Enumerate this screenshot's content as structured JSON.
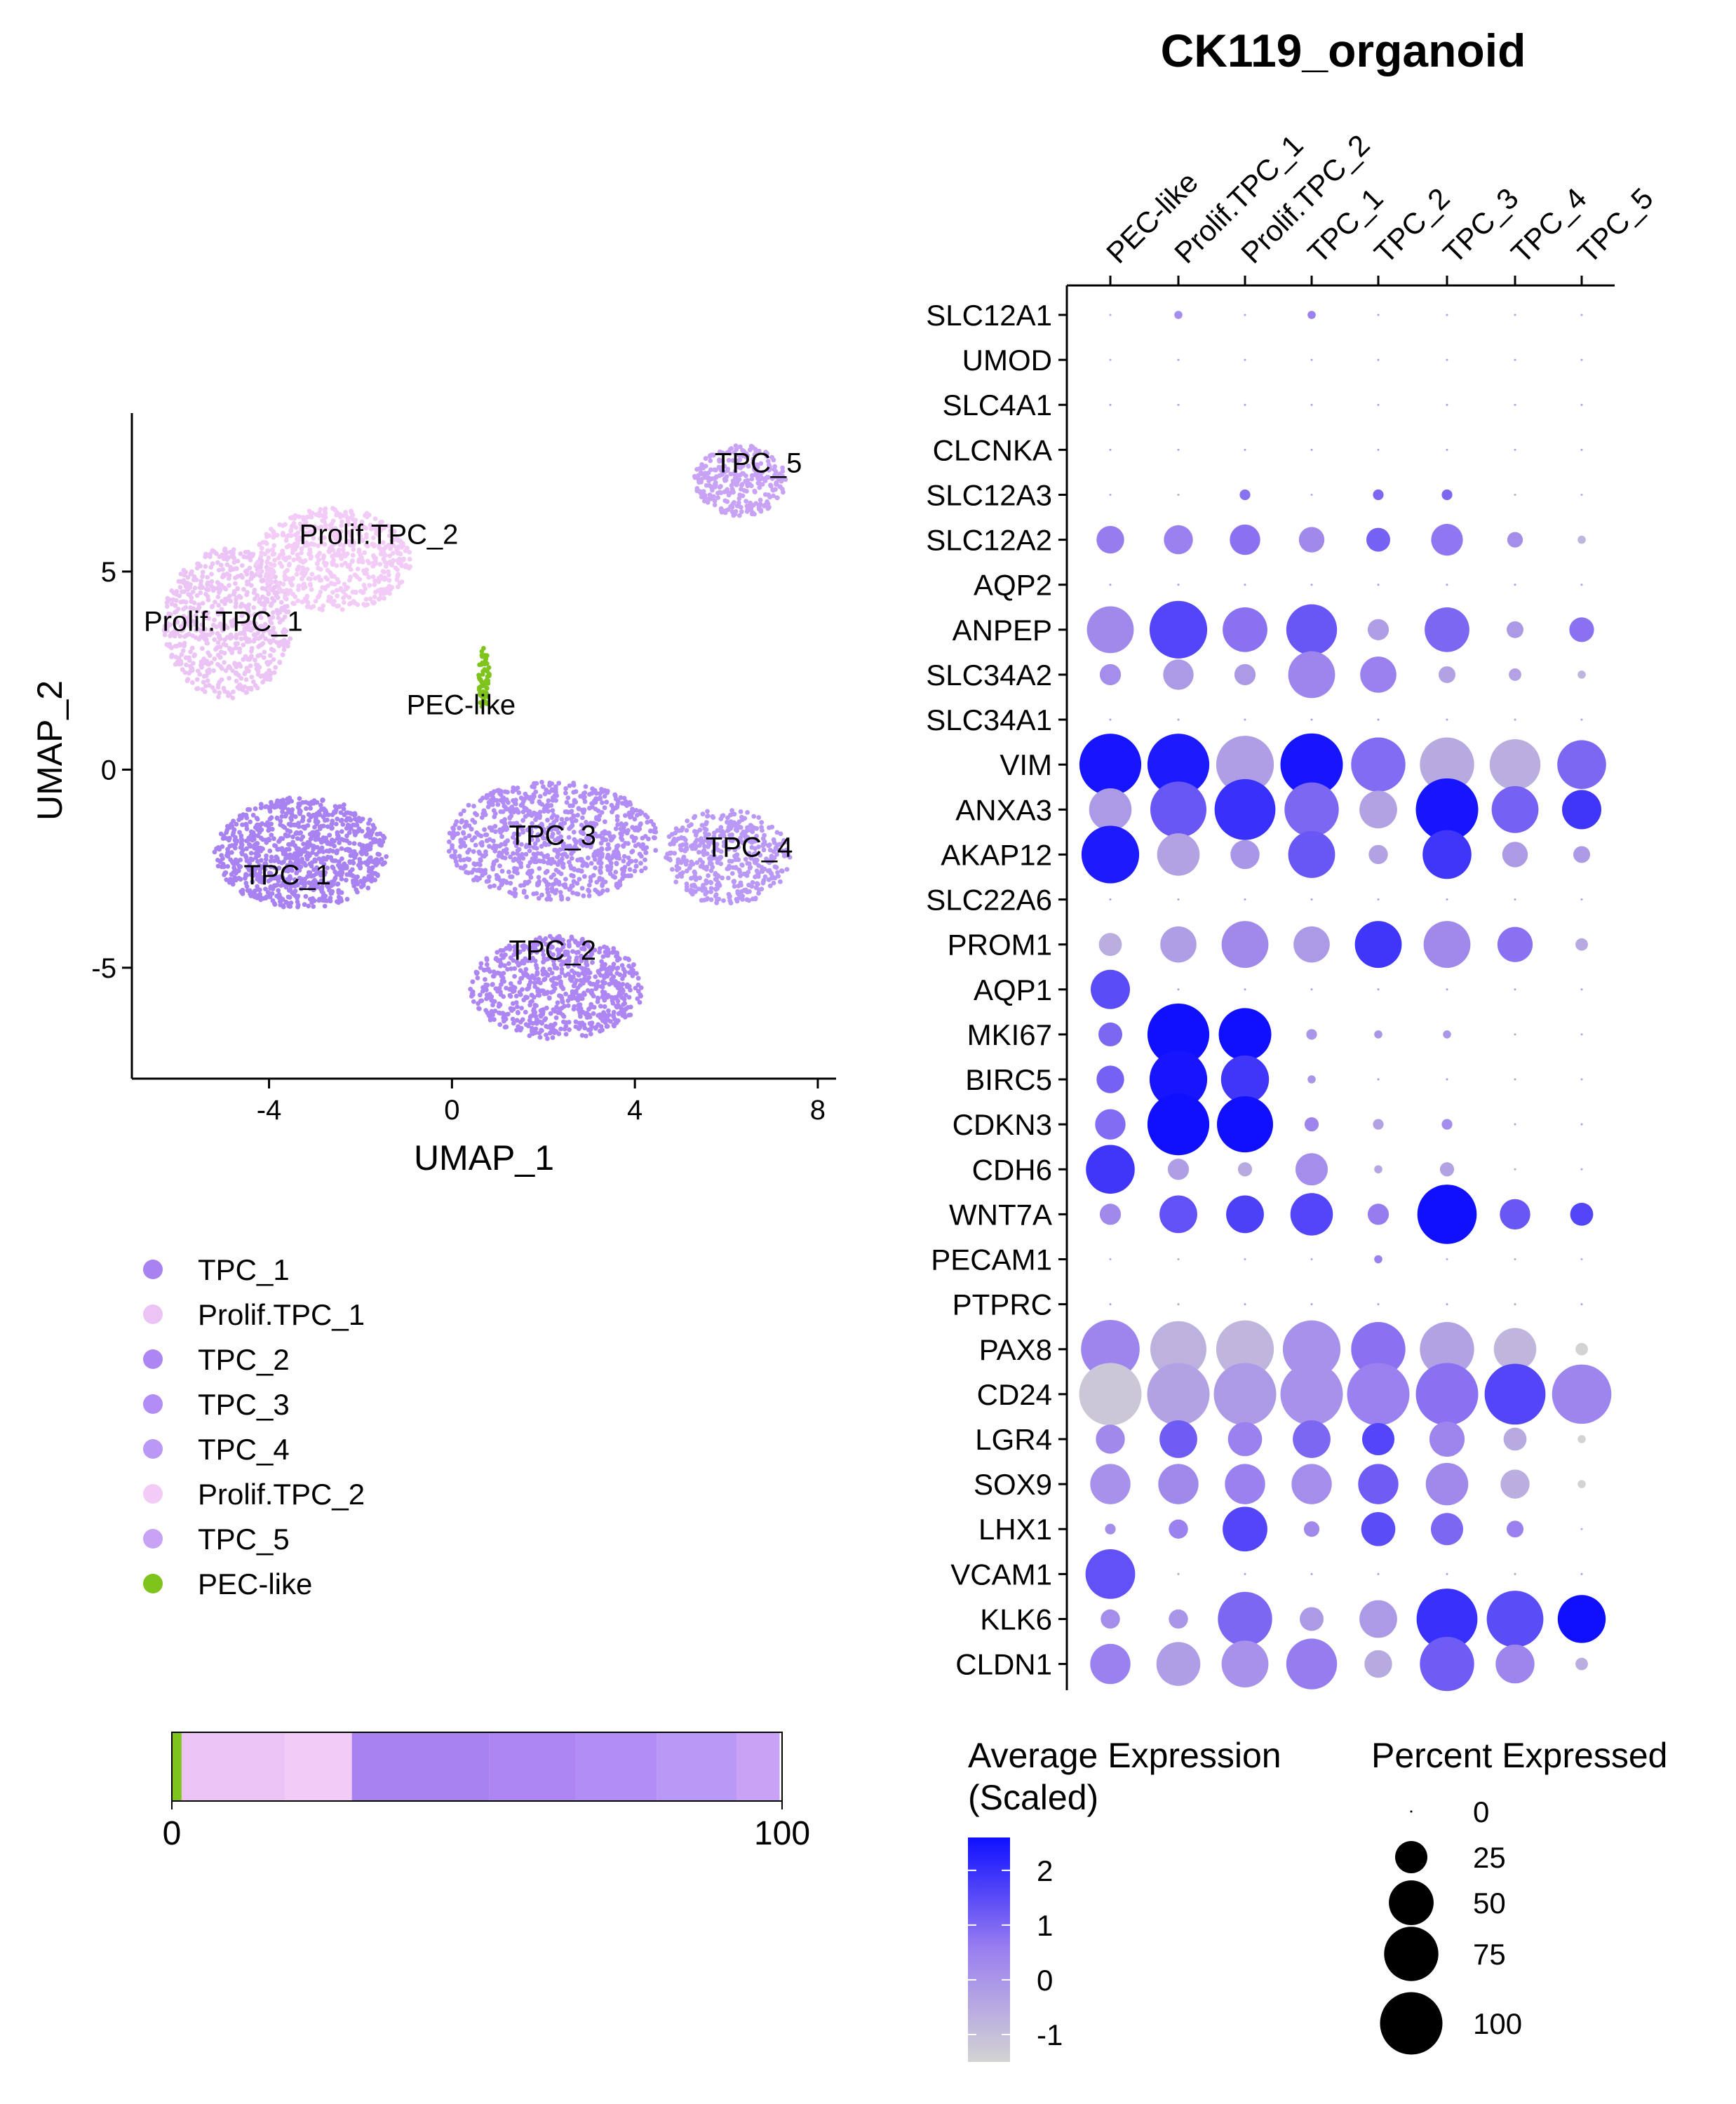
{
  "chart_data": [
    {
      "type": "scatter",
      "panel": "umap",
      "xlabel": "UMAP_1",
      "ylabel": "UMAP_2",
      "xlim": [
        -7,
        8.4
      ],
      "ylim": [
        -7.8,
        9
      ],
      "xticks": [
        -4,
        0,
        4,
        8
      ],
      "yticks": [
        -5,
        0,
        5
      ],
      "clusters": [
        {
          "name": "TPC_1",
          "color": "#A982F2",
          "cx": -3.3,
          "cy": -2.1,
          "rx": 1.9,
          "ry": 1.4,
          "n": 950
        },
        {
          "name": "Prolif.TPC_1",
          "color": "#EBC4F5",
          "cx": -4.9,
          "cy": 3.7,
          "rx": 1.4,
          "ry": 1.9,
          "n": 700
        },
        {
          "name": "TPC_2",
          "color": "#AE86F4",
          "cx": 2.3,
          "cy": -5.5,
          "rx": 1.9,
          "ry": 1.3,
          "n": 750
        },
        {
          "name": "TPC_3",
          "color": "#B18DF5",
          "cx": 2.2,
          "cy": -1.8,
          "rx": 2.3,
          "ry": 1.5,
          "n": 900
        },
        {
          "name": "TPC_4",
          "color": "#BA98F6",
          "cx": 6.0,
          "cy": -2.2,
          "rx": 1.4,
          "ry": 1.2,
          "n": 450
        },
        {
          "name": "Prolif.TPC_2",
          "color": "#F2CCF7",
          "cx": -2.6,
          "cy": 5.3,
          "rx": 1.7,
          "ry": 1.3,
          "n": 600
        },
        {
          "name": "TPC_5",
          "color": "#C8A2F5",
          "cx": 6.3,
          "cy": 7.3,
          "rx": 1.0,
          "ry": 0.9,
          "n": 300
        },
        {
          "name": "PEC-like",
          "color": "#7FC41C",
          "cx": 0.7,
          "cy": 2.3,
          "rx": 0.12,
          "ry": 0.8,
          "n": 60
        }
      ],
      "cluster_labels": [
        {
          "text": "Prolif.TPC_2",
          "x": -1.6,
          "y": 5.7
        },
        {
          "text": "Prolif.TPC_1",
          "x": -5.0,
          "y": 3.5
        },
        {
          "text": "PEC-like",
          "x": 0.2,
          "y": 1.4
        },
        {
          "text": "TPC_5",
          "x": 6.7,
          "y": 7.5
        },
        {
          "text": "TPC_3",
          "x": 2.2,
          "y": -1.9
        },
        {
          "text": "TPC_4",
          "x": 6.5,
          "y": -2.2
        },
        {
          "text": "TPC_1",
          "x": -3.6,
          "y": -2.9
        },
        {
          "text": "TPC_2",
          "x": 2.2,
          "y": -4.8
        }
      ],
      "legend": [
        {
          "label": "TPC_1",
          "color": "#A982F2"
        },
        {
          "label": "Prolif.TPC_1",
          "color": "#EBC4F5"
        },
        {
          "label": "TPC_2",
          "color": "#AE86F4"
        },
        {
          "label": "TPC_3",
          "color": "#B18DF5"
        },
        {
          "label": "TPC_4",
          "color": "#BA98F6"
        },
        {
          "label": "Prolif.TPC_2",
          "color": "#F2CCF7"
        },
        {
          "label": "TPC_5",
          "color": "#C8A2F5"
        },
        {
          "label": "PEC-like",
          "color": "#7FC41C"
        }
      ]
    },
    {
      "type": "bar",
      "panel": "composition",
      "orientation": "horizontal-stacked",
      "xlim": [
        0,
        100
      ],
      "xticks": [
        0,
        100
      ],
      "segments": [
        {
          "name": "PEC-like",
          "value": 1.6,
          "color": "#7FC41C"
        },
        {
          "name": "Prolif.TPC_1",
          "value": 16.9,
          "color": "#EBC4F5"
        },
        {
          "name": "Prolif.TPC_2",
          "value": 11.0,
          "color": "#F2CCF7"
        },
        {
          "name": "TPC_1",
          "value": 22.5,
          "color": "#A982F2"
        },
        {
          "name": "TPC_2",
          "value": 14.2,
          "color": "#AE86F4"
        },
        {
          "name": "TPC_3",
          "value": 13.3,
          "color": "#B18DF5"
        },
        {
          "name": "TPC_4",
          "value": 13.1,
          "color": "#BA98F6"
        },
        {
          "name": "TPC_5",
          "value": 7.0,
          "color": "#C8A2F5"
        }
      ]
    },
    {
      "type": "dotplot",
      "panel": "dotplot",
      "title": "CK119_organoid",
      "groups": [
        "PEC-like",
        "Prolif.TPC_1",
        "Prolif.TPC_2",
        "TPC_1",
        "TPC_2",
        "TPC_3",
        "TPC_4",
        "TPC_5"
      ],
      "genes": [
        "SLC12A1",
        "UMOD",
        "SLC4A1",
        "CLCNKA",
        "SLC12A3",
        "SLC12A2",
        "AQP2",
        "ANPEP",
        "SLC34A2",
        "SLC34A1",
        "VIM",
        "ANXA3",
        "AKAP12",
        "SLC22A6",
        "PROM1",
        "AQP1",
        "MKI67",
        "BIRC5",
        "CDKN3",
        "CDH6",
        "WNT7A",
        "PECAM1",
        "PTPRC",
        "PAX8",
        "CD24",
        "LGR4",
        "SOX9",
        "LHX1",
        "VCAM1",
        "KLK6",
        "CLDN1"
      ],
      "percent_expressed": [
        [
          0,
          1,
          0,
          1,
          0,
          0,
          0,
          0
        ],
        [
          0,
          0,
          0,
          0,
          0,
          0,
          0,
          0
        ],
        [
          0,
          0,
          0,
          0,
          0,
          0,
          0,
          0
        ],
        [
          0,
          0,
          0,
          0,
          0,
          0,
          0,
          0
        ],
        [
          0,
          0,
          2,
          0,
          2,
          2,
          0,
          0
        ],
        [
          18,
          20,
          22,
          15,
          13,
          24,
          5,
          1
        ],
        [
          0,
          0,
          0,
          0,
          0,
          0,
          0,
          0
        ],
        [
          55,
          85,
          50,
          65,
          10,
          50,
          6,
          14
        ],
        [
          10,
          22,
          10,
          55,
          32,
          6,
          3,
          1
        ],
        [
          0,
          0,
          0,
          0,
          0,
          0,
          0,
          0
        ],
        [
          98,
          98,
          85,
          100,
          75,
          75,
          65,
          60
        ],
        [
          45,
          80,
          95,
          75,
          35,
          100,
          55,
          38
        ],
        [
          85,
          45,
          20,
          55,
          8,
          60,
          15,
          6
        ],
        [
          0,
          0,
          0,
          0,
          0,
          0,
          0,
          0
        ],
        [
          12,
          32,
          55,
          32,
          55,
          55,
          30,
          3
        ],
        [
          38,
          0,
          0,
          0,
          0,
          0,
          0,
          0
        ],
        [
          13,
          98,
          70,
          2,
          1,
          1,
          0,
          0
        ],
        [
          18,
          85,
          58,
          1,
          0,
          0,
          0,
          0
        ],
        [
          22,
          98,
          80,
          4,
          2,
          2,
          0,
          0
        ],
        [
          60,
          10,
          4,
          25,
          1,
          4,
          0,
          0
        ],
        [
          10,
          35,
          35,
          45,
          10,
          90,
          22,
          12
        ],
        [
          0,
          0,
          0,
          0,
          1,
          0,
          0,
          0
        ],
        [
          0,
          0,
          0,
          0,
          0,
          0,
          0,
          0
        ],
        [
          88,
          80,
          85,
          85,
          75,
          75,
          45,
          3
        ],
        [
          100,
          100,
          100,
          100,
          100,
          100,
          95,
          90
        ],
        [
          20,
          35,
          28,
          35,
          25,
          30,
          12,
          1
        ],
        [
          40,
          40,
          40,
          40,
          40,
          45,
          20,
          1
        ],
        [
          2,
          8,
          50,
          5,
          28,
          25,
          6,
          0
        ],
        [
          62,
          0,
          0,
          0,
          0,
          0,
          0,
          0
        ],
        [
          8,
          8,
          75,
          13,
          35,
          95,
          82,
          58
        ],
        [
          40,
          48,
          55,
          65,
          18,
          75,
          37,
          3
        ]
      ],
      "avg_expression_scaled": [
        [
          -0.5,
          0.2,
          -0.2,
          0.5,
          -0.2,
          -0.2,
          -0.3,
          -0.3
        ],
        [
          -0.5,
          -0.2,
          -0.2,
          -0.2,
          -0.2,
          -0.2,
          -0.2,
          -0.2
        ],
        [
          -0.2,
          -0.2,
          -0.2,
          -0.2,
          -0.2,
          -0.2,
          -0.2,
          -0.2
        ],
        [
          -0.2,
          -0.2,
          -0.2,
          -0.2,
          -0.2,
          -0.2,
          -0.2,
          -0.2
        ],
        [
          -0.5,
          -0.5,
          0.8,
          -0.5,
          1.0,
          1.0,
          -0.5,
          -0.5
        ],
        [
          0.6,
          0.5,
          0.8,
          0.3,
          1.1,
          0.7,
          0.2,
          -0.8
        ],
        [
          -0.2,
          -0.2,
          -0.2,
          -0.2,
          -0.2,
          -0.2,
          -0.2,
          -0.2
        ],
        [
          0.3,
          1.6,
          0.8,
          1.3,
          -0.2,
          1.0,
          -0.1,
          0.8
        ],
        [
          0.2,
          -0.1,
          -0.1,
          0.4,
          0.5,
          -0.3,
          -0.3,
          -0.8
        ],
        [
          -0.2,
          -0.2,
          -0.2,
          -0.2,
          -0.2,
          -0.2,
          -0.2,
          -0.2
        ],
        [
          2.5,
          2.4,
          -0.2,
          2.5,
          0.9,
          -0.5,
          -0.6,
          1.0
        ],
        [
          -0.1,
          1.3,
          2.0,
          1.0,
          -0.3,
          2.5,
          1.1,
          1.9
        ],
        [
          2.4,
          -0.3,
          0.0,
          1.3,
          -0.3,
          1.9,
          -0.1,
          -0.1
        ],
        [
          -0.2,
          -0.2,
          -0.2,
          -0.2,
          -0.2,
          -0.2,
          -0.2,
          -0.2
        ],
        [
          -0.6,
          -0.2,
          0.3,
          -0.1,
          1.9,
          0.3,
          0.8,
          -0.5
        ],
        [
          1.5,
          -0.2,
          -0.2,
          -0.2,
          -0.2,
          -0.2,
          -0.2,
          -0.2
        ],
        [
          1.0,
          2.6,
          2.6,
          0.0,
          0.0,
          0.0,
          -0.3,
          -0.3
        ],
        [
          1.1,
          2.5,
          1.9,
          0.0,
          0.0,
          0.0,
          -0.3,
          -0.3
        ],
        [
          0.9,
          2.6,
          2.6,
          0.4,
          -0.3,
          0.2,
          -0.2,
          -0.2
        ],
        [
          1.9,
          -0.2,
          -0.5,
          0.2,
          -0.4,
          -0.3,
          -0.3,
          -0.3
        ],
        [
          0.3,
          1.4,
          1.7,
          1.6,
          0.6,
          2.6,
          1.3,
          1.6
        ],
        [
          -0.5,
          -0.5,
          -0.4,
          -0.4,
          0.5,
          -0.5,
          -0.5,
          -0.5
        ],
        [
          -0.2,
          -0.2,
          -0.2,
          -0.2,
          -0.2,
          -0.2,
          -0.2,
          -0.2
        ],
        [
          0.4,
          -0.7,
          -0.8,
          0.1,
          0.8,
          -0.3,
          -0.8,
          -1.8
        ],
        [
          -1.2,
          -0.3,
          -0.1,
          0.1,
          0.5,
          0.8,
          1.6,
          0.4
        ],
        [
          0.3,
          1.2,
          0.5,
          1.0,
          1.6,
          0.4,
          -0.5,
          -1.5
        ],
        [
          0.1,
          0.3,
          0.5,
          0.2,
          1.2,
          0.3,
          -0.6,
          -1.5
        ],
        [
          0.2,
          0.5,
          1.6,
          0.3,
          1.5,
          1.0,
          0.5,
          -0.5
        ],
        [
          1.4,
          -0.2,
          -0.2,
          -0.2,
          -0.2,
          -0.2,
          -0.2,
          -0.2
        ],
        [
          0.2,
          0.0,
          1.0,
          -0.1,
          -0.1,
          2.0,
          1.5,
          2.7
        ],
        [
          0.5,
          -0.2,
          0.1,
          0.6,
          -0.5,
          1.2,
          0.4,
          -0.6
        ]
      ],
      "color_scale": {
        "title": "Average Expression\n(Scaled)",
        "low": "#D3D3D3",
        "high": "#0000FF",
        "range": [
          -1.5,
          2.6
        ],
        "ticks": [
          2,
          1,
          0,
          -1
        ]
      },
      "size_scale": {
        "title": "Percent Expressed",
        "ticks": [
          0,
          25,
          50,
          75,
          100
        ]
      }
    }
  ],
  "labels": {
    "title": "CK119_organoid",
    "umap_xlabel": "UMAP_1",
    "umap_ylabel": "UMAP_2",
    "umap_xticks": [
      "-4",
      "0",
      "4",
      "8"
    ],
    "umap_yticks": [
      "5",
      "0",
      "-5"
    ],
    "bar_ticks": [
      "0",
      "100"
    ],
    "color_legend_title_1": "Average Expression",
    "color_legend_title_2": "(Scaled)",
    "color_legend_ticks": [
      "2",
      "1",
      "0",
      "-1"
    ],
    "size_legend_title": "Percent Expressed",
    "size_legend_ticks": [
      "0",
      "25",
      "50",
      "75",
      "100"
    ]
  }
}
